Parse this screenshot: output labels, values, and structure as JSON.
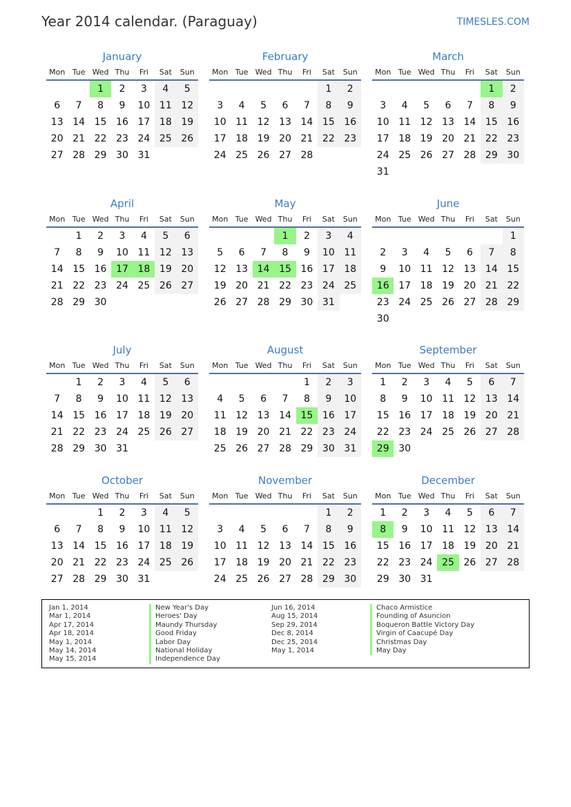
{
  "header": {
    "title": "Year 2014 calendar. (Paraguay)",
    "brand": "TIMESLES.COM"
  },
  "weekdays": [
    "Mon",
    "Tue",
    "Wed",
    "Thu",
    "Fri",
    "Sat",
    "Sun"
  ],
  "colors": {
    "accent": "#3a7cc0",
    "holiday": "#98f58a",
    "weekend": "#f2f2f2"
  },
  "months": [
    {
      "name": "January",
      "first_weekday": "Wed",
      "days": 31,
      "holidays": [
        1
      ]
    },
    {
      "name": "February",
      "first_weekday": "Sat",
      "days": 28,
      "holidays": []
    },
    {
      "name": "March",
      "first_weekday": "Sat",
      "days": 31,
      "holidays": [
        1
      ]
    },
    {
      "name": "April",
      "first_weekday": "Tue",
      "days": 30,
      "holidays": [
        17,
        18
      ]
    },
    {
      "name": "May",
      "first_weekday": "Thu",
      "days": 31,
      "holidays": [
        1,
        14,
        15
      ]
    },
    {
      "name": "June",
      "first_weekday": "Sun",
      "days": 30,
      "holidays": [
        16
      ]
    },
    {
      "name": "July",
      "first_weekday": "Tue",
      "days": 31,
      "holidays": []
    },
    {
      "name": "August",
      "first_weekday": "Fri",
      "days": 31,
      "holidays": [
        15
      ]
    },
    {
      "name": "September",
      "first_weekday": "Mon",
      "days": 30,
      "holidays": [
        29
      ]
    },
    {
      "name": "October",
      "first_weekday": "Wed",
      "days": 31,
      "holidays": []
    },
    {
      "name": "November",
      "first_weekday": "Sat",
      "days": 30,
      "holidays": []
    },
    {
      "name": "December",
      "first_weekday": "Mon",
      "days": 31,
      "holidays": [
        8,
        25
      ]
    }
  ],
  "legend": [
    [
      {
        "date": "Jan 1, 2014",
        "name": "New Year's Day"
      },
      {
        "date": "Mar 1, 2014",
        "name": "Heroes' Day"
      },
      {
        "date": "Apr 17, 2014",
        "name": "Maundy Thursday"
      },
      {
        "date": "Apr 18, 2014",
        "name": "Good Friday"
      },
      {
        "date": "May 1, 2014",
        "name": "Labor Day"
      },
      {
        "date": "May 14, 2014",
        "name": "National Holiday"
      },
      {
        "date": "May 15, 2014",
        "name": "Independence Day"
      }
    ],
    [
      {
        "date": "Jun 16, 2014",
        "name": "Chaco Armistice"
      },
      {
        "date": "Aug 15, 2014",
        "name": "Founding of Asuncion"
      },
      {
        "date": "Sep 29, 2014",
        "name": "Boqueron Battle Victory Day"
      },
      {
        "date": "Dec 8, 2014",
        "name": "Virgin of Caacupé Day"
      },
      {
        "date": "Dec 25, 2014",
        "name": "Christmas Day"
      },
      {
        "date": "May 1, 2014",
        "name": "May Day"
      }
    ]
  ]
}
